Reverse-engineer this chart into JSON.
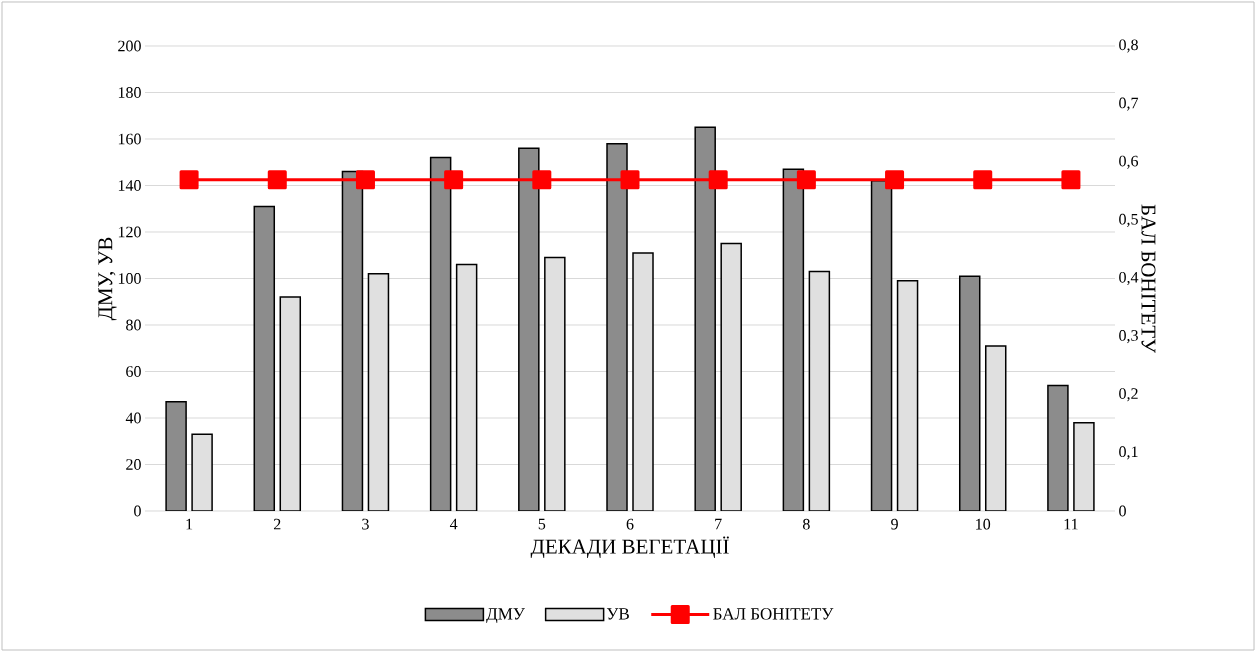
{
  "chart_data": {
    "type": "bar",
    "xlabel": "ДЕКАДИ ВЕГЕТАЦІЇ",
    "ylabel": "ДМУ, УВ",
    "y2label": "БАЛ БОНІТЕТУ",
    "categories": [
      "1",
      "2",
      "3",
      "4",
      "5",
      "6",
      "7",
      "8",
      "9",
      "10",
      "11"
    ],
    "series": [
      {
        "name": "ДМУ",
        "color": "#8c8c8c",
        "values": [
          47,
          131,
          146,
          152,
          156,
          158,
          165,
          147,
          142,
          101,
          54
        ]
      },
      {
        "name": "УВ",
        "color": "#e0e0e0",
        "values": [
          33,
          92,
          102,
          106,
          109,
          111,
          115,
          103,
          99,
          71,
          38
        ]
      },
      {
        "name": "БАЛ БОНІТЕТУ",
        "type": "line",
        "axis": "y2",
        "color": "#ff0000",
        "marker": "square",
        "values": [
          0.57,
          0.57,
          0.57,
          0.57,
          0.57,
          0.57,
          0.57,
          0.57,
          0.57,
          0.57,
          0.57
        ]
      }
    ],
    "ylim": [
      0,
      200
    ],
    "yticks": [
      0,
      20,
      40,
      60,
      80,
      100,
      120,
      140,
      160,
      180,
      200
    ],
    "y2lim": [
      0,
      0.8
    ],
    "y2ticks": [
      0,
      {
        "value": 0.1,
        "label": "0,1"
      },
      {
        "value": 0.2,
        "label": "0,2"
      },
      {
        "value": 0.3,
        "label": "0,3"
      },
      {
        "value": 0.4,
        "label": "0,4"
      },
      {
        "value": 0.5,
        "label": "0,5"
      },
      {
        "value": 0.6,
        "label": "0,6"
      },
      {
        "value": 0.7,
        "label": "0,7"
      },
      {
        "value": 0.8,
        "label": "0,8"
      }
    ],
    "grid": "y",
    "legend": "bottom"
  }
}
